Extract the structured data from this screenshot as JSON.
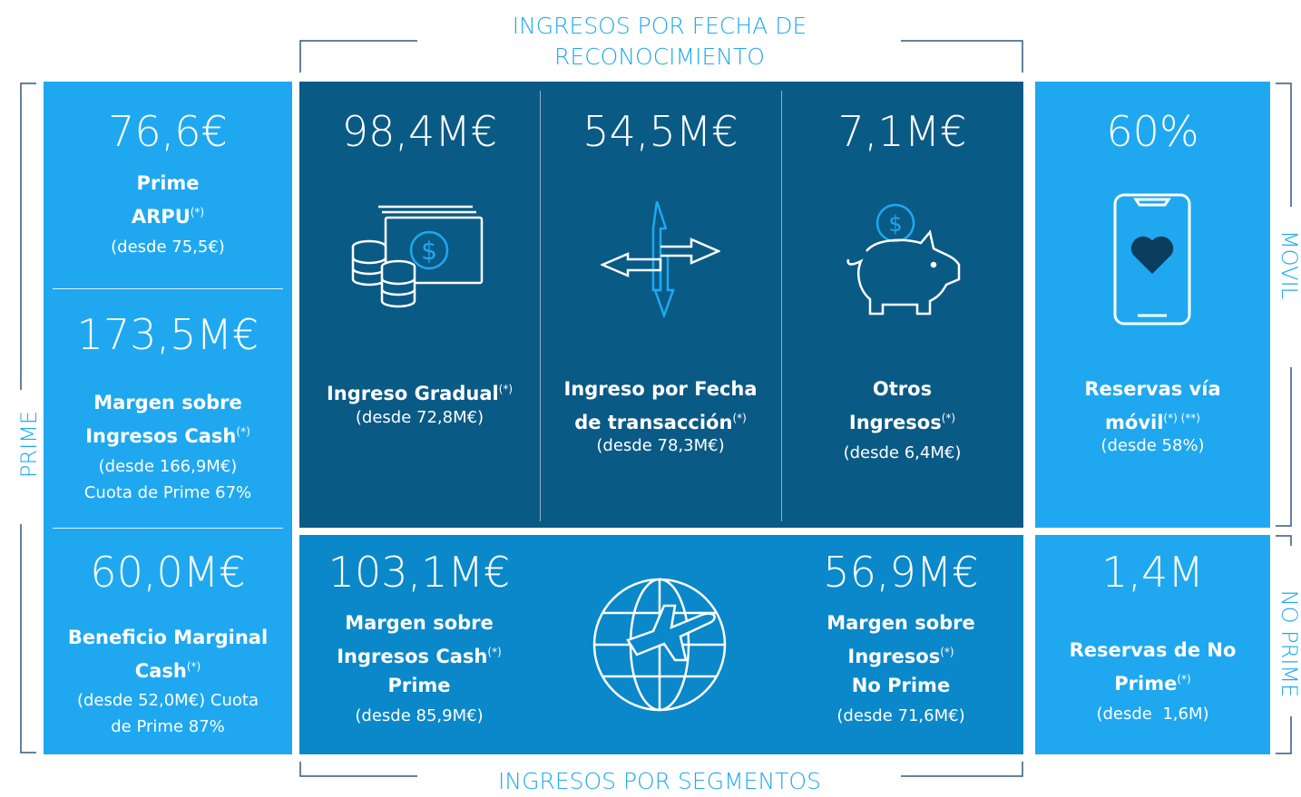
{
  "top_label": [
    "INGRESOS POR FECHA DE",
    "RECONOCIMIENTO"
  ],
  "bottom_label": "INGRESOS POR SEGMENTOS",
  "side_labels": {
    "left": "PRIME",
    "right_top": "MOVIL",
    "right_bottom": "NO PRIME"
  },
  "cards": [
    {
      "value": "76,6€",
      "label": [
        {
          "text": "Prime"
        },
        {
          "text": "ARPU",
          "sup": "(*)"
        }
      ],
      "sub": [
        "(desde 75,5€)"
      ]
    },
    {
      "value": "173,5M€",
      "label": [
        {
          "text": "Margen sobre"
        },
        {
          "text": "Ingresos Cash",
          "sup": "(*)"
        }
      ],
      "sub": [
        "(desde 166,9M€)",
        "Cuota de Prime 67%"
      ]
    },
    {
      "value": "60,0M€",
      "label": [
        {
          "text": "Beneficio Marginal"
        },
        {
          "text": "Cash",
          "sup": "(*)"
        }
      ],
      "sub": [
        "(desde 52,0M€) Cuota",
        "de Prime 87%"
      ]
    },
    {
      "value": "98,4M€",
      "label": [
        {
          "text": "Ingreso Gradual",
          "sup": "(*)"
        }
      ],
      "sub": [
        "(desde 72,8M€)"
      ]
    },
    {
      "value": "54,5M€",
      "label": [
        {
          "text": "Ingreso por Fecha"
        },
        {
          "text": "de transacción",
          "sup": "(*)"
        }
      ],
      "sub": [
        "(desde 78,3M€)"
      ]
    },
    {
      "value": "7,1M€",
      "label": [
        {
          "text": "Otros"
        },
        {
          "text": "Ingresos",
          "sup": "(*)"
        }
      ],
      "sub": [
        "(desde 6,4M€)"
      ]
    },
    {
      "value": "103,1M€",
      "label": [
        {
          "text": "Margen sobre"
        },
        {
          "text": "Ingresos Cash",
          "sup": "(*)"
        },
        {
          "text": "Prime"
        }
      ],
      "sub": [
        "(desde 85,9M€)"
      ]
    },
    {
      "value": "56,9M€",
      "label": [
        {
          "text": "Margen sobre"
        },
        {
          "text": "Ingresos",
          "sup": "(*)"
        },
        {
          "text": "No Prime"
        }
      ],
      "sub": [
        "(desde 71,6M€)"
      ]
    },
    {
      "value": "60%",
      "label": [
        {
          "text": "Reservas vía"
        },
        {
          "text": "móvil",
          "sup": "(*) (**)"
        }
      ],
      "sub": [
        "(desde 58%)"
      ]
    },
    {
      "value": "1,4M",
      "label": [
        {
          "text": "Reservas de No"
        },
        {
          "text": "Prime",
          "sup": "(*)"
        }
      ],
      "sub": [
        "(desde  1,6M)"
      ]
    }
  ]
}
